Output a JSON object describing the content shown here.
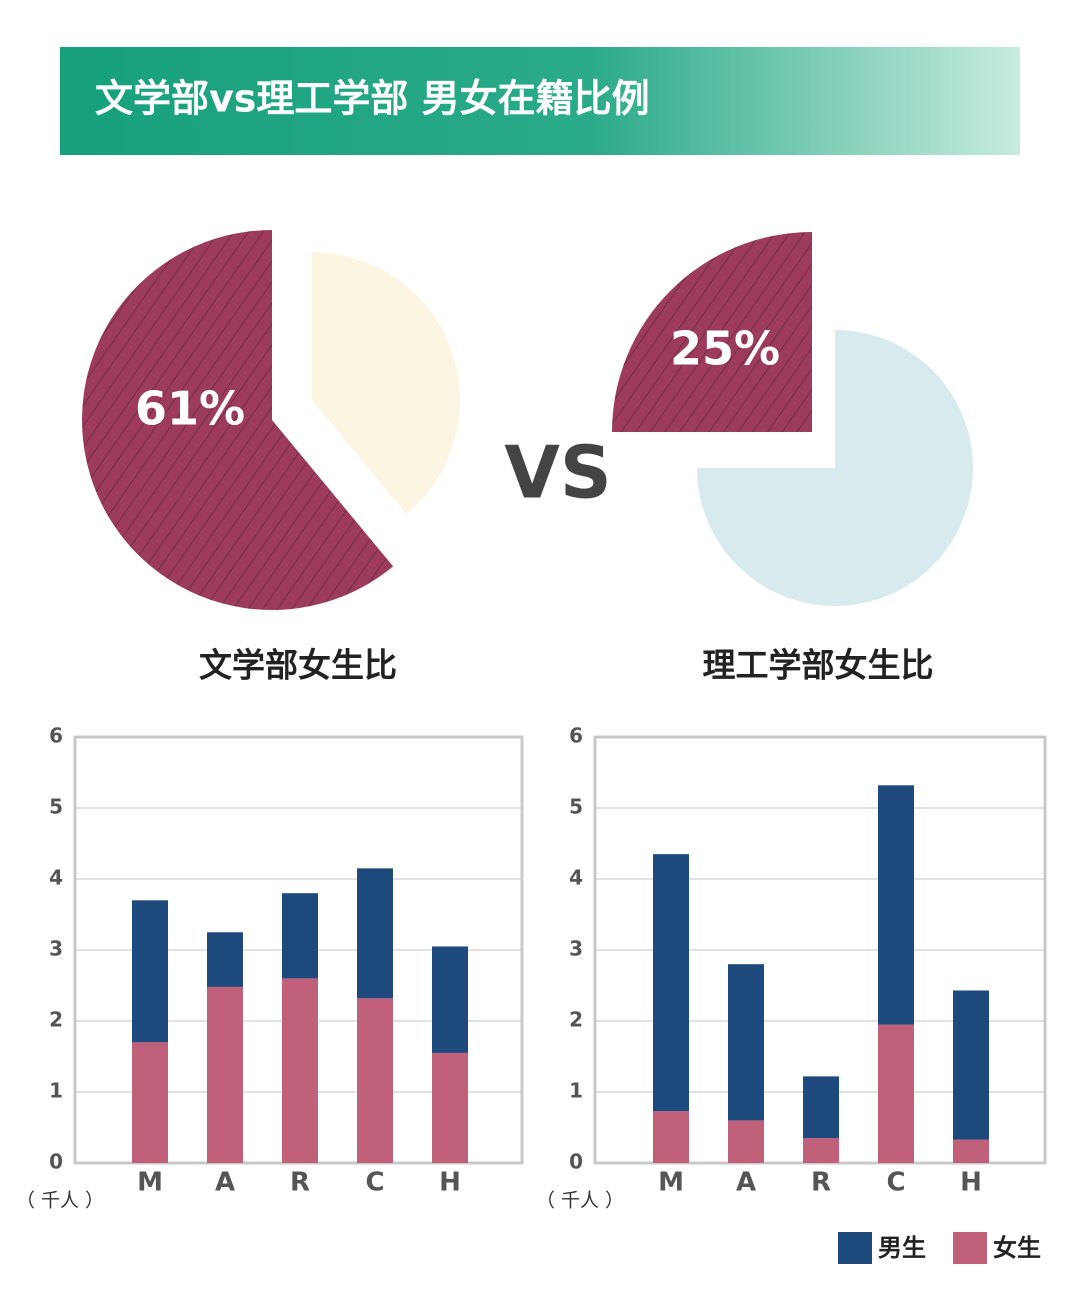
{
  "title": "文学部vs理工学部 男女在籍比例",
  "vs": "VS",
  "chart_data": [
    {
      "type": "pie",
      "title": "文学部女生比",
      "values": [
        61,
        39
      ],
      "value_labels": [
        "61%",
        null
      ],
      "colors": [
        "#9c3b5d",
        "#fbf4de"
      ]
    },
    {
      "type": "pie",
      "title": "理工学部女生比",
      "values": [
        25,
        75
      ],
      "value_labels": [
        "25%",
        null
      ],
      "colors": [
        "#9c3b5d",
        "#d3e9ec"
      ]
    },
    {
      "type": "bar",
      "stacked": true,
      "y_label": "（ 千人 ）",
      "categories": [
        "M",
        "A",
        "R",
        "C",
        "H"
      ],
      "series": [
        {
          "name": "男生",
          "color": "#1e497c",
          "values": [
            2.0,
            0.77,
            1.2,
            1.83,
            1.5
          ]
        },
        {
          "name": "女生",
          "color": "#c0607a",
          "values": [
            1.7,
            2.48,
            2.6,
            2.32,
            1.55
          ]
        }
      ],
      "ylim": [
        0,
        6
      ],
      "yticks": [
        0,
        1,
        2,
        3,
        4,
        5,
        6
      ],
      "grid": true
    },
    {
      "type": "bar",
      "stacked": true,
      "y_label": "（ 千人 ）",
      "categories": [
        "M",
        "A",
        "R",
        "C",
        "H"
      ],
      "series": [
        {
          "name": "男生",
          "color": "#1e497c",
          "values": [
            3.62,
            2.2,
            0.87,
            3.37,
            2.1
          ]
        },
        {
          "name": "女生",
          "color": "#c0607a",
          "values": [
            0.73,
            0.6,
            0.35,
            1.95,
            0.33
          ]
        }
      ],
      "ylim": [
        0,
        6
      ],
      "yticks": [
        0,
        1,
        2,
        3,
        4,
        5,
        6
      ],
      "grid": true,
      "legend": "bottom-right"
    }
  ]
}
